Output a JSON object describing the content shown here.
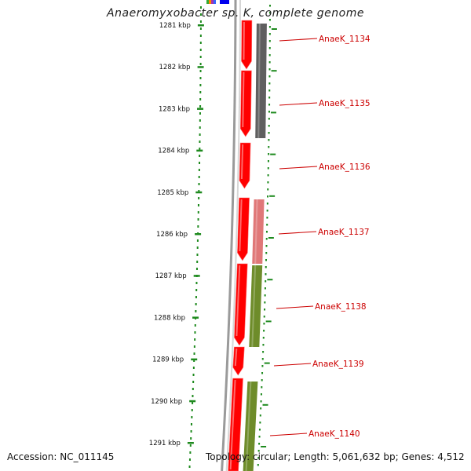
{
  "title": "Anaeromyxobacter sp. K, complete genome",
  "footer": {
    "accession": "Accession: NC_011145",
    "topology": "Topology: circular; Length: 5,061,632 bp; Genes: 4,512"
  },
  "ticks": [
    "1281 kbp",
    "1282 kbp",
    "1283 kbp",
    "1284 kbp",
    "1285 kbp",
    "1286 kbp",
    "1287 kbp",
    "1288 kbp",
    "1289 kbp",
    "1290 kbp",
    "1291 kbp"
  ],
  "genes": [
    {
      "label": "AnaeK_1134",
      "cog_color": "#5f5f5f"
    },
    {
      "label": "AnaeK_1135",
      "cog_color": "#5f5f5f"
    },
    {
      "label": "AnaeK_1136",
      "cog_color": ""
    },
    {
      "label": "AnaeK_1137",
      "cog_color": "#e07878"
    },
    {
      "label": "AnaeK_1138",
      "cog_color": "#6e8c2a"
    },
    {
      "label": "AnaeK_1139",
      "cog_color": ""
    },
    {
      "label": "AnaeK_1140",
      "cog_color": "#6e8c2a"
    }
  ],
  "colors": {
    "cds": "#ff0000",
    "tick": "#1e8a1e",
    "label": "#cc0000",
    "backbone": "#888888"
  }
}
